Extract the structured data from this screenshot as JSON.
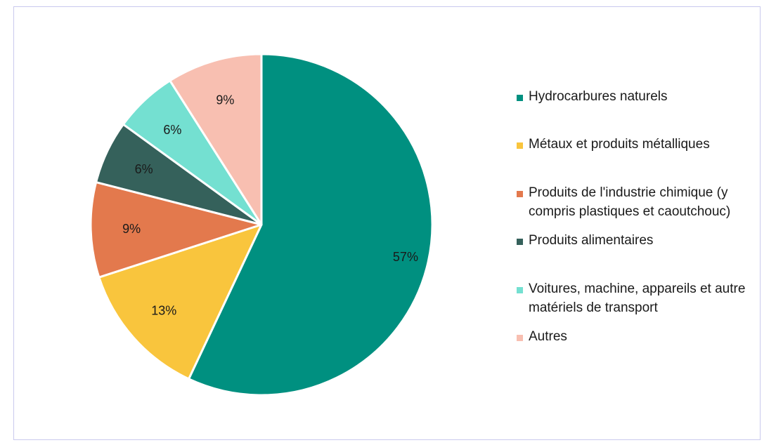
{
  "chart_data": {
    "type": "pie",
    "title": "",
    "legend_position": "right",
    "slices": [
      {
        "label": "Hydrocarbures naturels",
        "value": 57,
        "display": "57%",
        "color": "#009080"
      },
      {
        "label": "Métaux et produits métalliques",
        "value": 13,
        "display": "13%",
        "color": "#f9c53d"
      },
      {
        "label": "Produits de l'industrie chimique (y compris plastiques et caoutchouc)",
        "value": 9,
        "display": "9%",
        "color": "#e3794d"
      },
      {
        "label": "Produits alimentaires",
        "value": 6,
        "display": "6%",
        "color": "#35615b"
      },
      {
        "label": "Voitures, machine, appareils et autre matériels de transport",
        "value": 6,
        "display": "6%",
        "color": "#74e0d1"
      },
      {
        "label": "Autres",
        "value": 9,
        "display": "9%",
        "color": "#f8bfb1"
      }
    ]
  }
}
